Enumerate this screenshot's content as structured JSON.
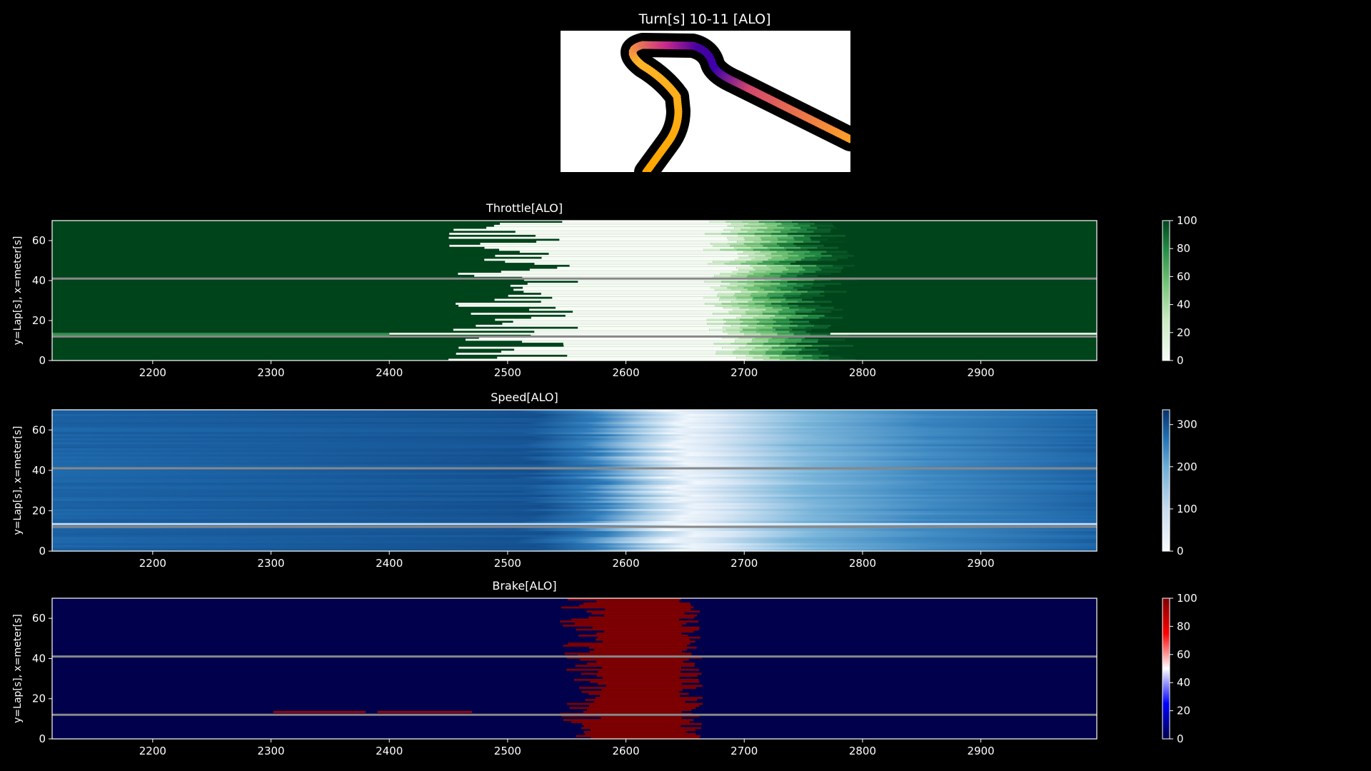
{
  "figure": {
    "background": "#000000"
  },
  "map": {
    "title": "Turn[s] 10-11 [ALO]",
    "track_color": "#000000",
    "panel_color": "#ffffff"
  },
  "chart_data": [
    {
      "type": "heatmap",
      "title": "Throttle[ALO]",
      "xlabel": "",
      "ylabel": "y=Lap[s], x=meter[s]",
      "xlim": [
        2115,
        2998
      ],
      "ylim": [
        0,
        70
      ],
      "xticks": [
        2200,
        2300,
        2400,
        2500,
        2600,
        2700,
        2800,
        2900
      ],
      "yticks": [
        0,
        20,
        40,
        60
      ],
      "colormap": "Greens",
      "colorbar": {
        "min": 0,
        "max": 100,
        "ticks": [
          0,
          20,
          40,
          60,
          80,
          100
        ]
      },
      "low_start": 2505,
      "low_end": 2665,
      "reference_laps": [
        12,
        41
      ]
    },
    {
      "type": "heatmap",
      "title": "Speed[ALO]",
      "xlabel": "",
      "ylabel": "y=Lap[s], x=meter[s]",
      "xlim": [
        2115,
        2998
      ],
      "ylim": [
        0,
        70
      ],
      "xticks": [
        2200,
        2300,
        2400,
        2500,
        2600,
        2700,
        2800,
        2900
      ],
      "yticks": [
        0,
        20,
        40,
        60
      ],
      "colormap": "Blues",
      "colorbar": {
        "min": 0,
        "max": 335,
        "ticks": [
          0,
          100,
          200,
          300
        ]
      },
      "low_start": 2600,
      "low_end": 2700,
      "reference_laps": [
        12,
        41
      ]
    },
    {
      "type": "heatmap",
      "title": "Brake[ALO]",
      "xlabel": "",
      "ylabel": "y=Lap[s], x=meter[s]",
      "xlim": [
        2115,
        2998
      ],
      "ylim": [
        0,
        70
      ],
      "xticks": [
        2200,
        2300,
        2400,
        2500,
        2600,
        2700,
        2800,
        2900
      ],
      "yticks": [
        0,
        20,
        40,
        60
      ],
      "colormap": "seismic",
      "colorbar": {
        "min": 0,
        "max": 100,
        "ticks": [
          0,
          20,
          40,
          60,
          80,
          100
        ]
      },
      "brake_start": 2560,
      "brake_end": 2645,
      "reference_laps": [
        12,
        41
      ]
    }
  ]
}
